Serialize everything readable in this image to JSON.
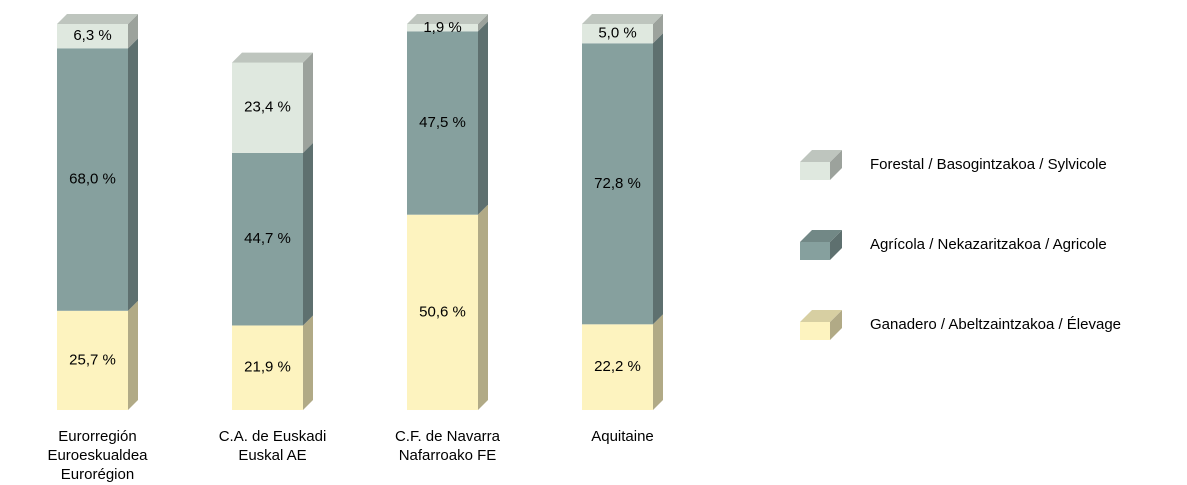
{
  "chart_data": {
    "type": "stacked_bar_3d",
    "categories": [
      [
        "Eurorregión",
        "Euroeskualdea",
        "Eurorégion"
      ],
      [
        "C.A. de Euskadi",
        "Euskal AE"
      ],
      [
        "C.F. de Navarra",
        "Nafarroako FE"
      ],
      [
        "Aquitaine"
      ]
    ],
    "series": [
      {
        "name": "Ganadero / Abeltzaintzakoa / Élevage",
        "color": "#fdf3bf",
        "values": [
          25.7,
          21.9,
          50.6,
          22.2
        ],
        "value_labels": [
          "25,7 %",
          "21,9 %",
          "50,6 %",
          "22,2 %"
        ]
      },
      {
        "name": "Agrícola / Nekazaritzakoa / Agricole",
        "color": "#86a09e",
        "values": [
          68.0,
          44.7,
          47.5,
          72.8
        ],
        "value_labels": [
          "68,0 %",
          "44,7 %",
          "47,5 %",
          "72,8 %"
        ]
      },
      {
        "name": "Forestal / Basogintzakoa / Sylvicole",
        "color": "#dfe8df",
        "values": [
          6.3,
          23.4,
          1.9,
          5.0
        ],
        "value_labels": [
          "6,3 %",
          "23,4 %",
          "1,9 %",
          "5,0 %"
        ]
      }
    ],
    "ylim": [
      0,
      100
    ],
    "legend": "right"
  }
}
